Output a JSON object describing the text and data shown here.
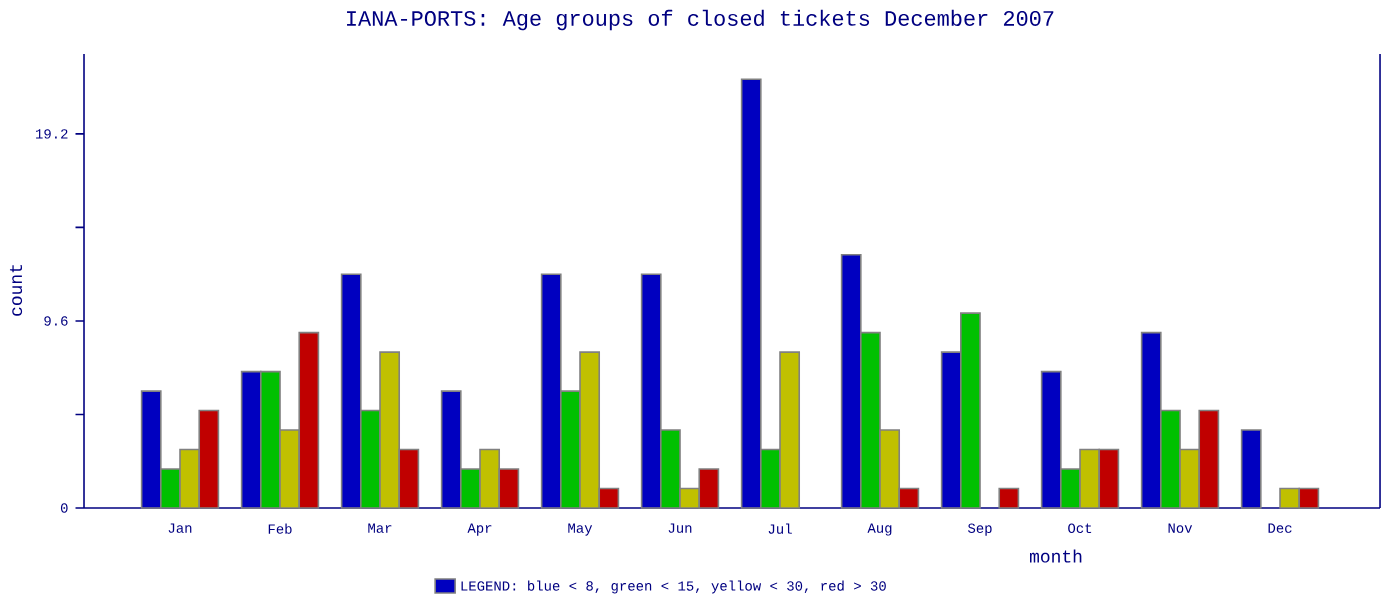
{
  "chart_data": {
    "type": "bar",
    "title": "IANA-PORTS: Age groups of closed tickets December 2007",
    "xlabel": "month",
    "ylabel": "count",
    "categories": [
      "Jan",
      "Feb",
      "Mar",
      "Apr",
      "May",
      "Jun",
      "Jul",
      "Aug",
      "Sep",
      "Oct",
      "Nov",
      "Dec"
    ],
    "series": [
      {
        "name": "LEGEND: blue < 8, green < 15, yellow < 30, red > 30",
        "color": "#0000c0",
        "values": [
          6,
          7,
          12,
          6,
          12,
          12,
          22,
          13,
          8,
          7,
          9,
          4
        ]
      },
      {
        "color": "#00c000",
        "values": [
          2,
          7,
          5,
          2,
          6,
          4,
          3,
          9,
          10,
          2,
          5,
          0
        ]
      },
      {
        "color": "#c0c000",
        "values": [
          3,
          4,
          8,
          3,
          8,
          1,
          8,
          4,
          0,
          3,
          3,
          1
        ]
      },
      {
        "color": "#c00000",
        "values": [
          5,
          9,
          3,
          2,
          1,
          2,
          0,
          1,
          1,
          3,
          5,
          1
        ]
      }
    ],
    "ylim": [
      0,
      23.3
    ],
    "yticks": [
      0,
      {
        "value": 4.8,
        "label": null
      },
      9.6,
      {
        "value": 14.4,
        "label": null
      },
      19.2
    ],
    "grid": false,
    "legend": "bottom"
  }
}
